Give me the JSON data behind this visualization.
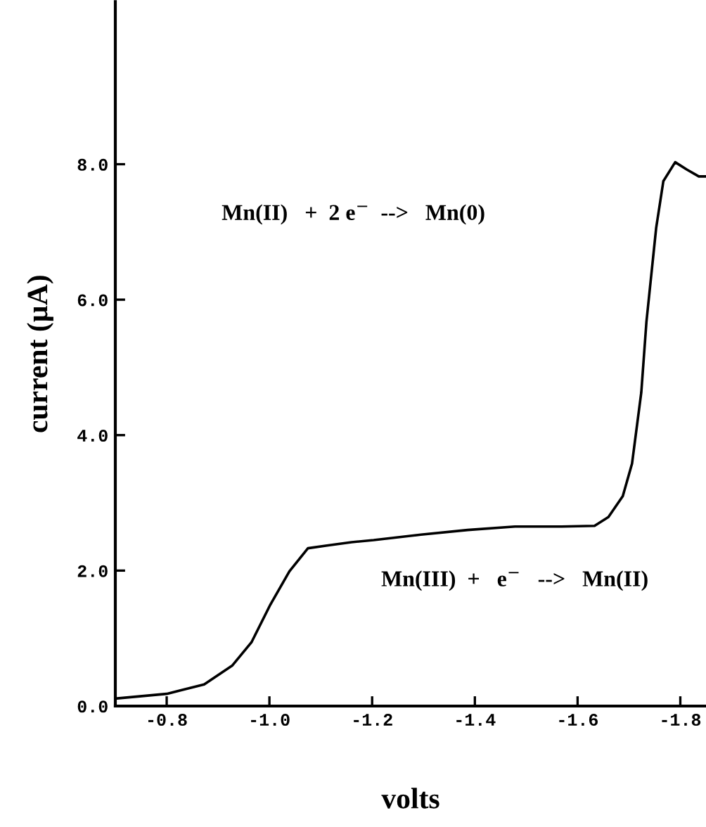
{
  "chart_data": {
    "type": "line",
    "xlabel": "volts",
    "ylabel": "current (µA)",
    "annotations": [
      "Mn(II)   +  2 e$^{−}$  -->   Mn(0)",
      "Mn(III)  +   e$^{−}$   -->   Mn(II)"
    ],
    "x": [
      -0.7,
      -0.8,
      -0.873,
      -0.928,
      -0.965,
      -1.002,
      -1.039,
      -1.075,
      -1.112,
      -1.16,
      -1.203,
      -1.295,
      -1.386,
      -1.478,
      -1.569,
      -1.633,
      -1.66,
      -1.688,
      -1.706,
      -1.724,
      -1.734,
      -1.753,
      -1.767,
      -1.79,
      -1.813,
      -1.836,
      -1.85
    ],
    "series": [
      {
        "color": "#000000",
        "values": [
          0.11,
          0.18,
          0.32,
          0.6,
          0.94,
          1.5,
          1.99,
          2.33,
          2.37,
          2.42,
          2.45,
          2.53,
          2.6,
          2.65,
          2.65,
          2.66,
          2.79,
          3.1,
          3.58,
          4.63,
          5.67,
          7.06,
          7.75,
          8.03,
          7.92,
          7.82,
          7.82
        ]
      }
    ],
    "xlim": [
      -0.7,
      -1.85
    ],
    "xticks": [
      {
        "value": -0.8,
        "label": "-0.8"
      },
      {
        "value": -1.0,
        "label": "-1.0"
      },
      {
        "value": -1.2,
        "label": "-1.2"
      },
      {
        "value": -1.4,
        "label": "-1.4"
      },
      {
        "value": -1.6,
        "label": "-1.6"
      },
      {
        "value": -1.8,
        "label": "-1.8"
      }
    ],
    "ylim": [
      0,
      10.4
    ],
    "yticks": [
      {
        "value": 0,
        "label": "0.0"
      },
      {
        "value": 2,
        "label": "2.0"
      },
      {
        "value": 4,
        "label": "4.0"
      },
      {
        "value": 6,
        "label": "6.0"
      },
      {
        "value": 8,
        "label": "8.0"
      }
    ],
    "grid": false,
    "legend": false,
    "marker": "none",
    "line_style": "solid"
  }
}
